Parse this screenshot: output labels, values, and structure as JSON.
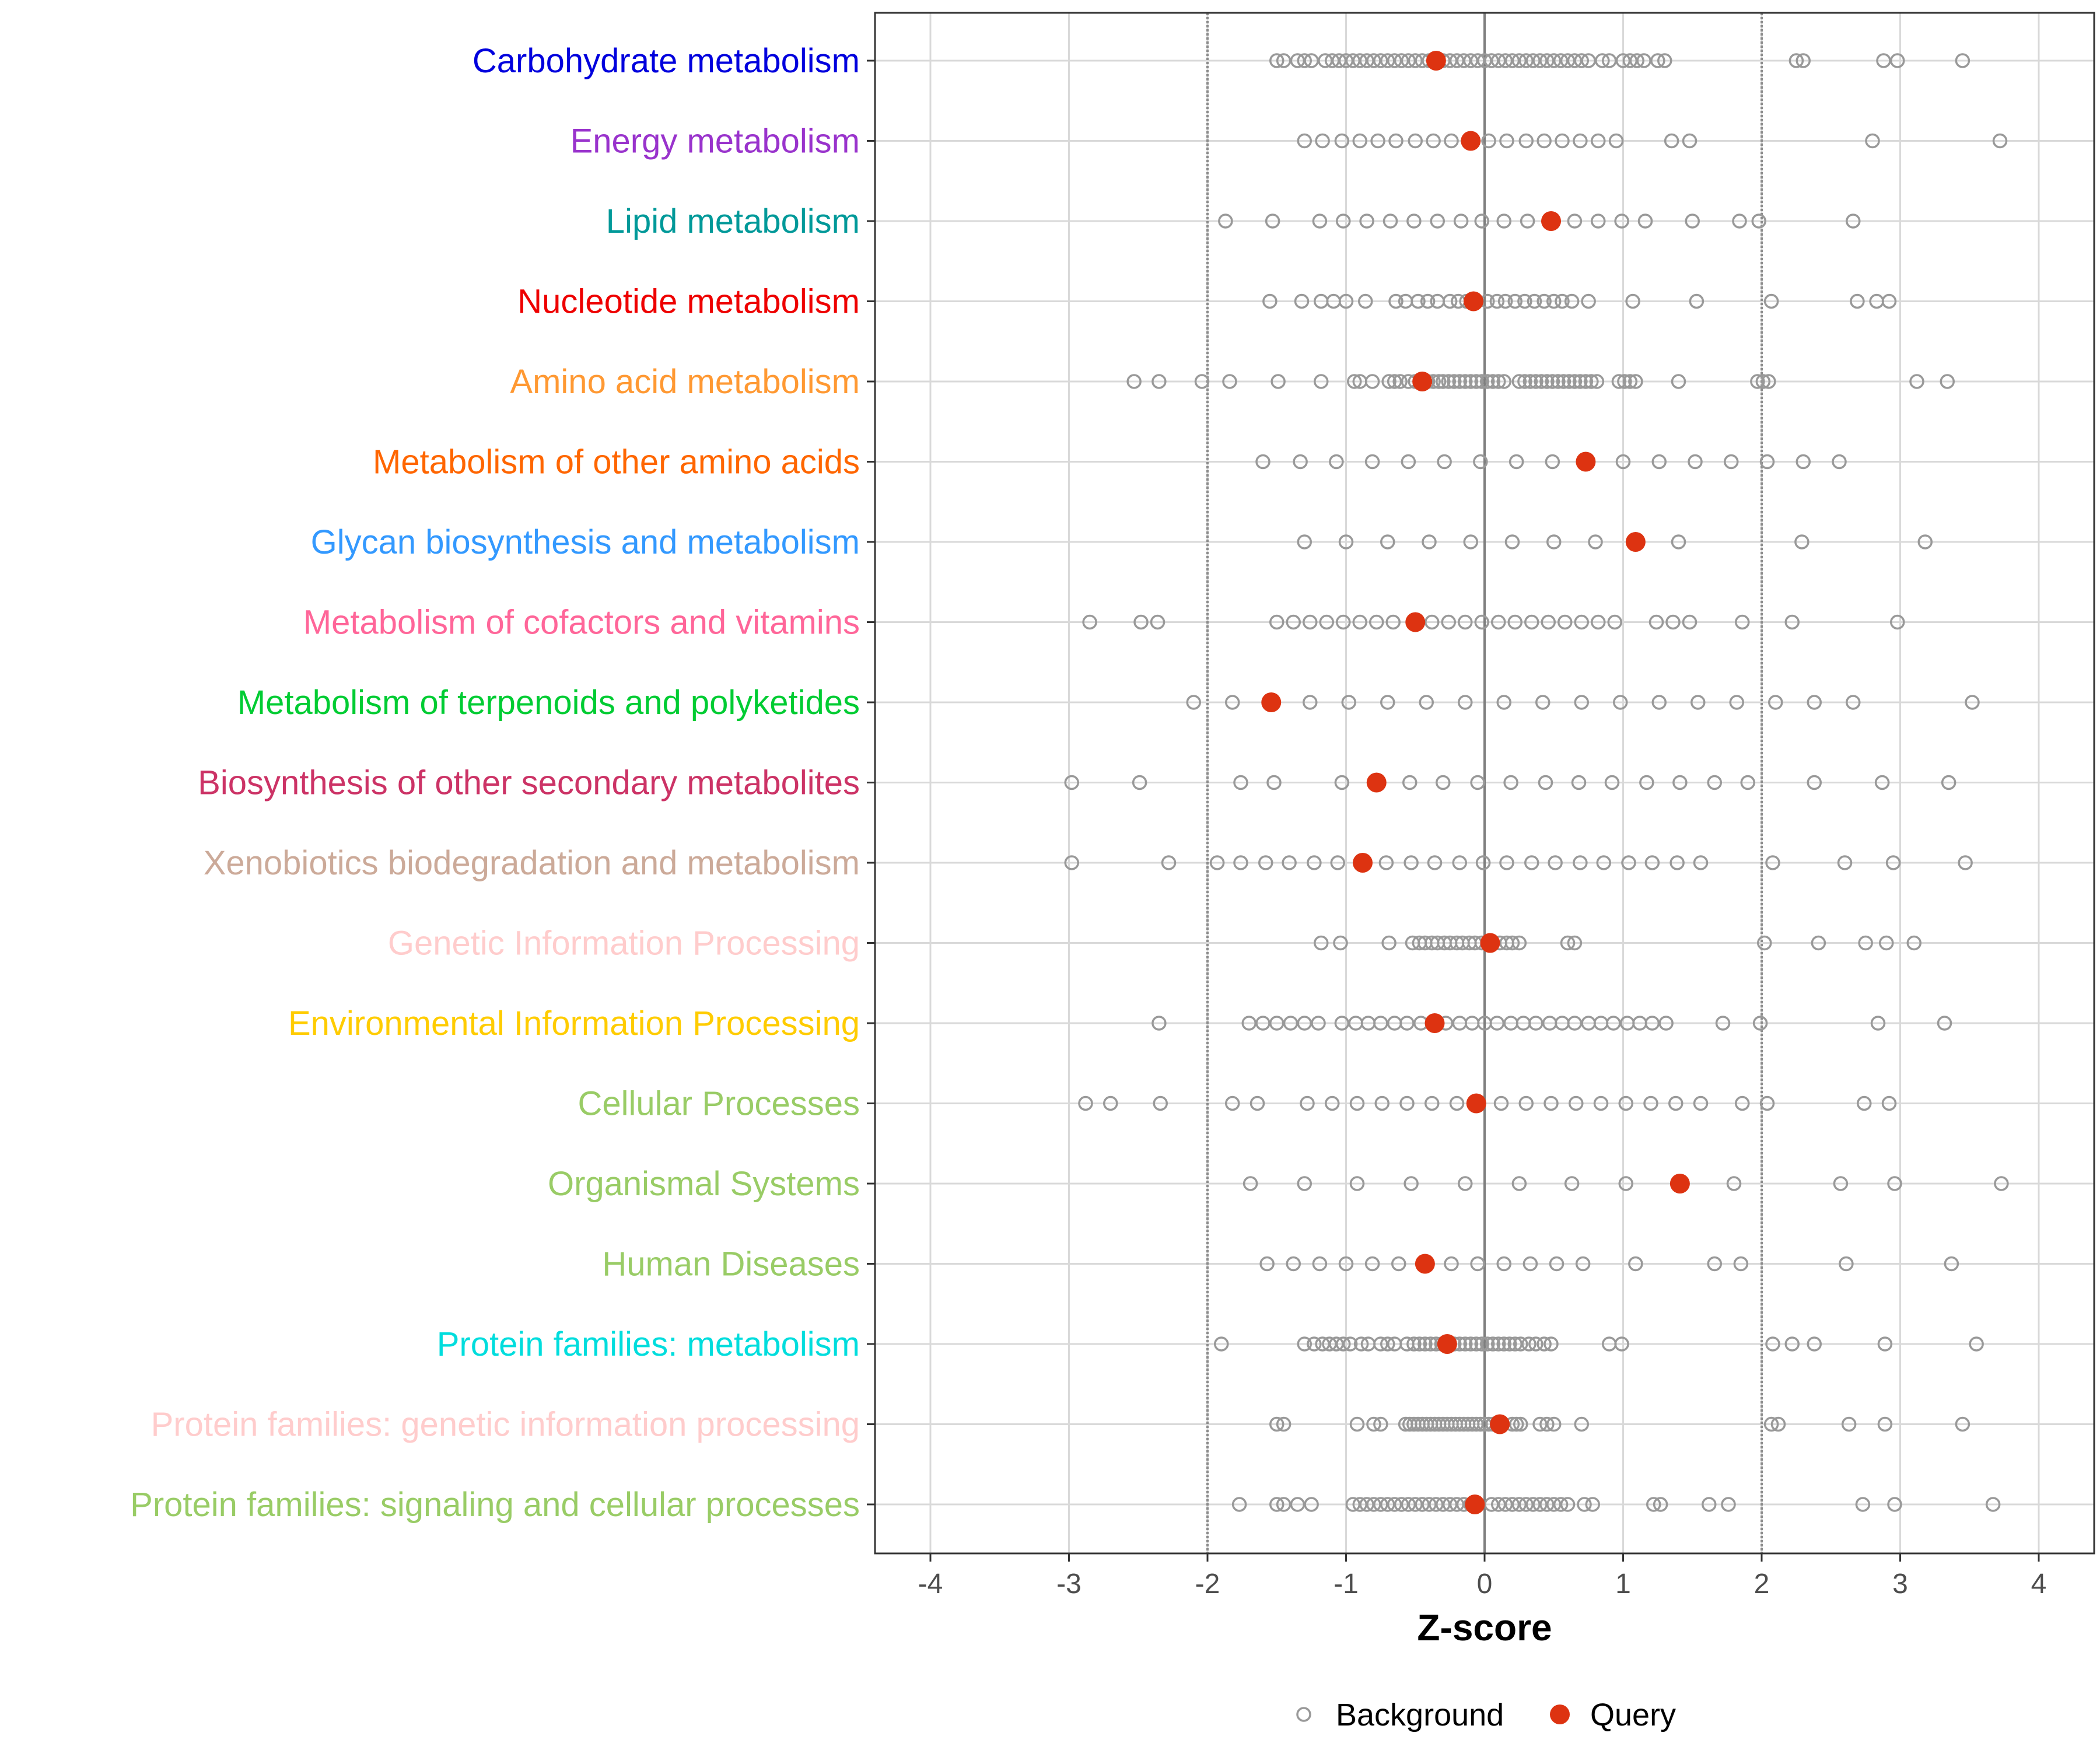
{
  "chart_data": {
    "type": "scatter",
    "xlabel": "Z-score",
    "xlim": [
      -4.4,
      4.4
    ],
    "x_ticks": [
      -4,
      -3,
      -2,
      -1,
      0,
      1,
      2,
      3,
      4
    ],
    "x_tick_labels": [
      "-4",
      "-3",
      "-2",
      "-1",
      "0",
      "1",
      "2",
      "3",
      "4"
    ],
    "threshold_lines": [
      -2,
      2
    ],
    "zero_line": 0,
    "legend_position": "bottom",
    "legend": [
      {
        "name": "Background",
        "style": "open-circle",
        "color": "#999999"
      },
      {
        "name": "Query",
        "style": "filled-circle",
        "color": "#dd3311"
      }
    ],
    "colors": {
      "background_point": "#999999",
      "query_point": "#dd3311",
      "grid": "#d9d9d9",
      "threshold": "#8c8c8c",
      "zero_line": "#7f7f7f"
    },
    "categories": [
      {
        "label": "Carbohydrate metabolism",
        "color": "#0000dd",
        "query": -0.35,
        "background": [
          -1.5,
          -1.45,
          -1.35,
          -1.3,
          -1.25,
          -1.15,
          -1.1,
          -1.05,
          -1.0,
          -0.95,
          -0.9,
          -0.85,
          -0.8,
          -0.75,
          -0.7,
          -0.65,
          -0.6,
          -0.55,
          -0.5,
          -0.45,
          -0.4,
          -0.3,
          -0.25,
          -0.2,
          -0.15,
          -0.1,
          -0.05,
          0.0,
          0.05,
          0.1,
          0.15,
          0.2,
          0.25,
          0.3,
          0.35,
          0.4,
          0.45,
          0.5,
          0.55,
          0.6,
          0.65,
          0.7,
          0.75,
          0.85,
          0.9,
          1.0,
          1.05,
          1.1,
          1.15,
          1.25,
          1.3,
          2.25,
          2.3,
          2.88,
          2.98,
          3.45
        ]
      },
      {
        "label": "Energy metabolism",
        "color": "#9933cc",
        "query": -0.1,
        "background": [
          -1.3,
          -1.17,
          -1.03,
          -0.9,
          -0.77,
          -0.64,
          -0.5,
          -0.37,
          -0.24,
          0.03,
          0.16,
          0.3,
          0.43,
          0.56,
          0.69,
          0.82,
          0.95,
          1.35,
          1.48,
          2.8,
          3.72
        ]
      },
      {
        "label": "Lipid metabolism",
        "color": "#009999",
        "query": 0.48,
        "background": [
          -1.87,
          -1.53,
          -1.19,
          -1.02,
          -0.85,
          -0.68,
          -0.51,
          -0.34,
          -0.17,
          -0.02,
          0.14,
          0.31,
          0.65,
          0.82,
          0.99,
          1.16,
          1.5,
          1.84,
          1.98,
          2.66
        ]
      },
      {
        "label": "Nucleotide metabolism",
        "color": "#ee0000",
        "query": -0.08,
        "background": [
          -1.55,
          -1.32,
          -1.18,
          -1.09,
          -1.0,
          -0.86,
          -0.64,
          -0.57,
          -0.48,
          -0.41,
          -0.34,
          -0.25,
          -0.19,
          -0.13,
          0.02,
          0.09,
          0.15,
          0.22,
          0.29,
          0.36,
          0.43,
          0.5,
          0.56,
          0.63,
          0.75,
          1.07,
          1.53,
          2.07,
          2.69,
          2.83,
          2.92
        ]
      },
      {
        "label": "Amino acid metabolism",
        "color": "#ff9933",
        "query": -0.45,
        "background": [
          -2.53,
          -2.35,
          -2.04,
          -1.84,
          -1.49,
          -1.18,
          -0.94,
          -0.9,
          -0.81,
          -0.69,
          -0.65,
          -0.61,
          -0.55,
          -0.5,
          -0.41,
          -0.37,
          -0.33,
          -0.3,
          -0.26,
          -0.22,
          -0.18,
          -0.14,
          -0.1,
          -0.06,
          -0.02,
          0.02,
          0.06,
          0.1,
          0.14,
          0.25,
          0.29,
          0.33,
          0.37,
          0.41,
          0.45,
          0.49,
          0.53,
          0.57,
          0.61,
          0.65,
          0.69,
          0.73,
          0.77,
          0.81,
          0.97,
          1.01,
          1.05,
          1.09,
          1.4,
          1.97,
          2.01,
          2.05,
          3.12,
          3.34
        ]
      },
      {
        "label": "Metabolism of other amino acids",
        "color": "#ff6600",
        "query": 0.73,
        "background": [
          -1.6,
          -1.33,
          -1.07,
          -0.81,
          -0.55,
          -0.29,
          -0.03,
          0.23,
          0.49,
          1.0,
          1.26,
          1.52,
          1.78,
          2.04,
          2.3,
          2.56
        ]
      },
      {
        "label": "Glycan biosynthesis and metabolism",
        "color": "#3399ff",
        "query": 1.09,
        "background": [
          -1.3,
          -1.0,
          -0.7,
          -0.4,
          -0.1,
          0.2,
          0.5,
          0.8,
          1.4,
          2.29,
          3.18
        ]
      },
      {
        "label": "Metabolism of cofactors and vitamins",
        "color": "#ff6699",
        "query": -0.5,
        "background": [
          -2.85,
          -2.48,
          -2.36,
          -1.5,
          -1.38,
          -1.26,
          -1.14,
          -1.02,
          -0.9,
          -0.78,
          -0.66,
          -0.38,
          -0.26,
          -0.14,
          -0.02,
          0.1,
          0.22,
          0.34,
          0.46,
          0.58,
          0.7,
          0.82,
          0.94,
          1.24,
          1.36,
          1.48,
          1.86,
          2.22,
          2.98
        ]
      },
      {
        "label": "Metabolism of terpenoids and polyketides",
        "color": "#00cc33",
        "query": -1.54,
        "background": [
          -2.1,
          -1.82,
          -1.26,
          -0.98,
          -0.7,
          -0.42,
          -0.14,
          0.14,
          0.42,
          0.7,
          0.98,
          1.26,
          1.54,
          1.82,
          2.1,
          2.38,
          2.66,
          3.52
        ]
      },
      {
        "label": "Biosynthesis of other secondary metabolites",
        "color": "#cc3366",
        "query": -0.78,
        "background": [
          -2.98,
          -2.49,
          -1.76,
          -1.52,
          -1.03,
          -0.54,
          -0.3,
          -0.05,
          0.19,
          0.44,
          0.68,
          0.92,
          1.17,
          1.41,
          1.66,
          1.9,
          2.38,
          2.87,
          3.35
        ]
      },
      {
        "label": "Xenobiotics biodegradation and metabolism",
        "color": "#ccaa99",
        "query": -0.88,
        "background": [
          -2.98,
          -2.28,
          -1.93,
          -1.76,
          -1.58,
          -1.41,
          -1.23,
          -1.06,
          -0.71,
          -0.53,
          -0.36,
          -0.18,
          -0.01,
          0.16,
          0.34,
          0.51,
          0.69,
          0.86,
          1.04,
          1.21,
          1.39,
          1.56,
          2.08,
          2.6,
          2.95,
          3.47
        ]
      },
      {
        "label": "Genetic Information Processing",
        "color": "#ffcccc",
        "query": 0.04,
        "background": [
          -1.18,
          -1.04,
          -0.69,
          -0.52,
          -0.47,
          -0.43,
          -0.38,
          -0.34,
          -0.29,
          -0.25,
          -0.2,
          -0.16,
          -0.11,
          -0.07,
          -0.02,
          0.11,
          0.16,
          0.2,
          0.25,
          0.6,
          0.65,
          2.02,
          2.41,
          2.75,
          2.9,
          3.1
        ]
      },
      {
        "label": "Environmental Information Processing",
        "color": "#ffcc00",
        "query": -0.36,
        "background": [
          -2.35,
          -1.7,
          -1.6,
          -1.5,
          -1.4,
          -1.3,
          -1.2,
          -1.03,
          -0.93,
          -0.84,
          -0.75,
          -0.65,
          -0.56,
          -0.46,
          -0.28,
          -0.18,
          -0.09,
          0.0,
          0.09,
          0.19,
          0.28,
          0.37,
          0.47,
          0.56,
          0.65,
          0.75,
          0.84,
          0.93,
          1.03,
          1.12,
          1.21,
          1.31,
          1.72,
          1.99,
          2.84,
          3.32
        ]
      },
      {
        "label": "Cellular Processes",
        "color": "#99cc66",
        "query": -0.06,
        "background": [
          -2.88,
          -2.7,
          -2.34,
          -1.82,
          -1.64,
          -1.28,
          -1.1,
          -0.92,
          -0.74,
          -0.56,
          -0.38,
          -0.2,
          0.12,
          0.3,
          0.48,
          0.66,
          0.84,
          1.02,
          1.2,
          1.38,
          1.56,
          1.86,
          2.04,
          2.74,
          2.92
        ]
      },
      {
        "label": "Organismal Systems",
        "color": "#99cc66",
        "query": 1.41,
        "background": [
          -1.69,
          -1.3,
          -0.92,
          -0.53,
          -0.14,
          0.25,
          0.63,
          1.02,
          1.8,
          2.57,
          2.96,
          3.73
        ]
      },
      {
        "label": "Human Diseases",
        "color": "#99cc66",
        "query": -0.43,
        "background": [
          -1.57,
          -1.38,
          -1.19,
          -1.0,
          -0.81,
          -0.62,
          -0.24,
          -0.05,
          0.14,
          0.33,
          0.52,
          0.71,
          1.09,
          1.66,
          1.85,
          2.61,
          3.37
        ]
      },
      {
        "label": "Protein families: metabolism",
        "color": "#00dddd",
        "query": -0.27,
        "background": [
          -1.9,
          -1.3,
          -1.23,
          -1.17,
          -1.12,
          -1.07,
          -1.02,
          -0.97,
          -0.89,
          -0.84,
          -0.75,
          -0.7,
          -0.65,
          -0.56,
          -0.51,
          -0.47,
          -0.43,
          -0.39,
          -0.35,
          -0.31,
          -0.22,
          -0.18,
          -0.14,
          -0.1,
          -0.06,
          -0.02,
          0.02,
          0.06,
          0.1,
          0.14,
          0.18,
          0.22,
          0.26,
          0.32,
          0.37,
          0.43,
          0.48,
          0.9,
          0.99,
          2.08,
          2.22,
          2.38,
          2.89,
          3.55
        ]
      },
      {
        "label": "Protein families: genetic information processing",
        "color": "#ffcccc",
        "query": 0.11,
        "background": [
          -1.5,
          -1.45,
          -0.92,
          -0.8,
          -0.75,
          -0.57,
          -0.54,
          -0.51,
          -0.48,
          -0.45,
          -0.42,
          -0.39,
          -0.36,
          -0.33,
          -0.3,
          -0.27,
          -0.24,
          -0.21,
          -0.18,
          -0.15,
          -0.12,
          -0.09,
          -0.06,
          -0.03,
          0.0,
          0.03,
          0.06,
          0.2,
          0.23,
          0.26,
          0.4,
          0.45,
          0.5,
          0.7,
          2.07,
          2.12,
          2.63,
          2.89,
          3.45
        ]
      },
      {
        "label": "Protein families: signaling and cellular processes",
        "color": "#99cc66",
        "query": -0.07,
        "background": [
          -1.77,
          -1.5,
          -1.45,
          -1.35,
          -1.25,
          -0.95,
          -0.9,
          -0.85,
          -0.8,
          -0.75,
          -0.7,
          -0.65,
          -0.6,
          -0.55,
          -0.5,
          -0.45,
          -0.4,
          -0.35,
          -0.3,
          -0.25,
          -0.2,
          -0.15,
          -0.1,
          0.05,
          0.1,
          0.15,
          0.2,
          0.25,
          0.3,
          0.35,
          0.4,
          0.45,
          0.5,
          0.55,
          0.6,
          0.72,
          0.78,
          1.22,
          1.27,
          1.62,
          1.76,
          2.73,
          2.96,
          3.67
        ]
      }
    ]
  }
}
